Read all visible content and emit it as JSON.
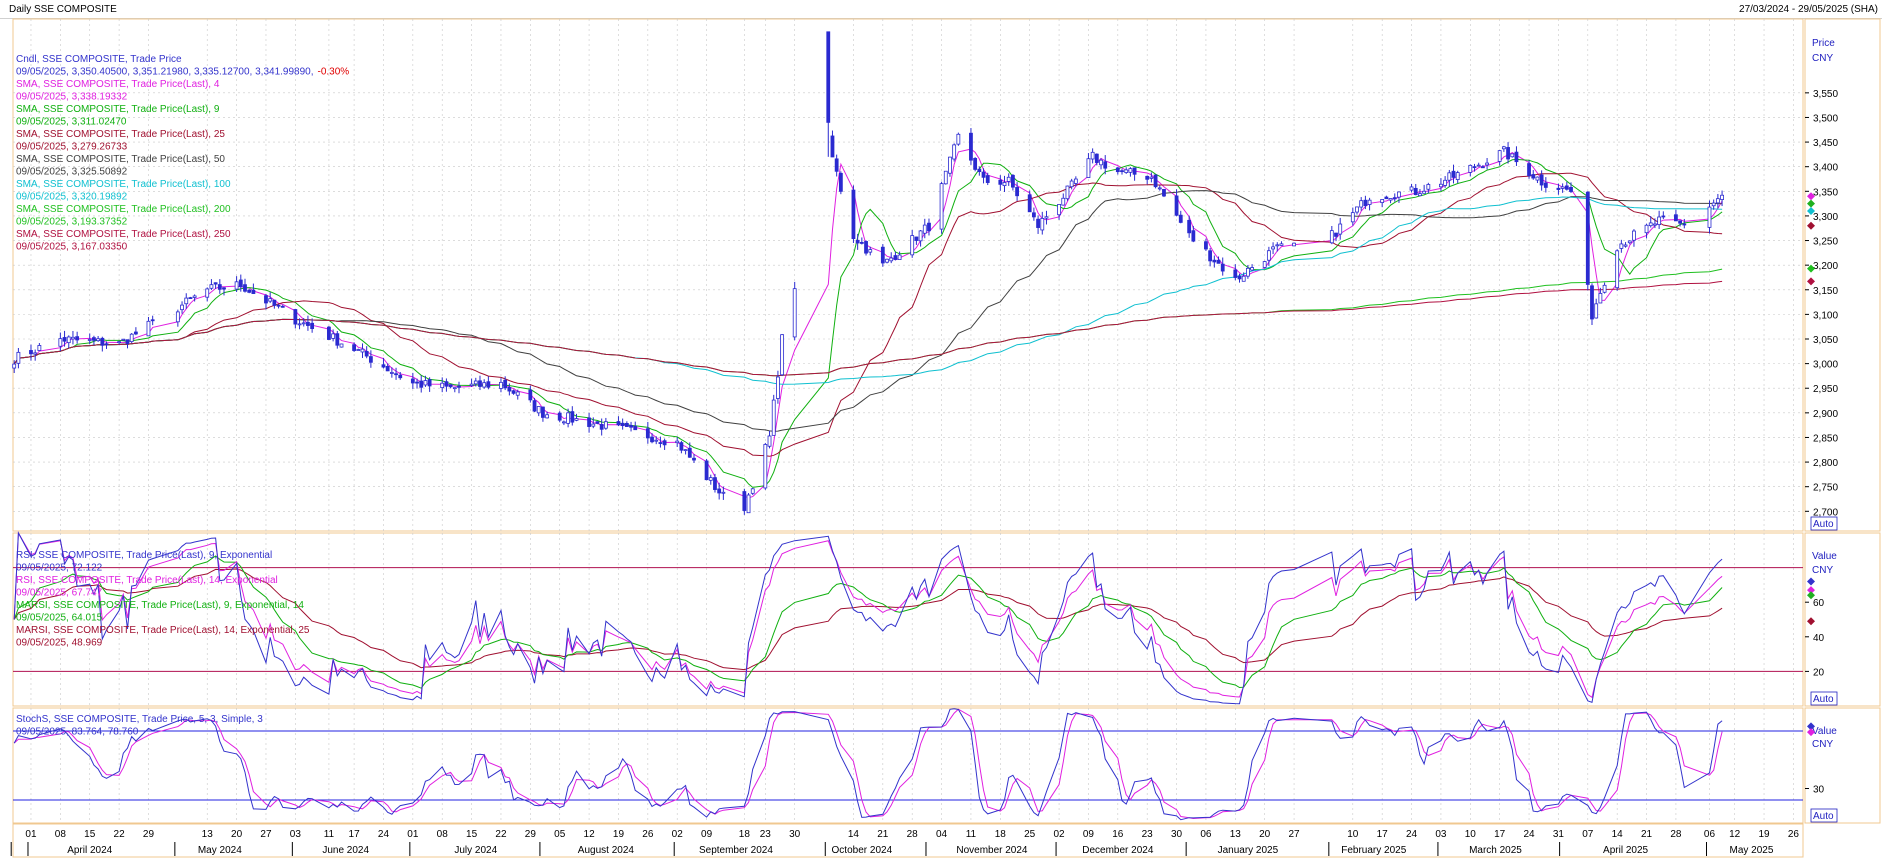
{
  "header": {
    "title": "Daily SSE COMPOSITE",
    "date_range": "27/03/2024 - 29/05/2025 (SHA)"
  },
  "chart_data": [
    {
      "type": "candlestick",
      "ylim": [
        2660,
        3700
      ],
      "yticks": [
        2700,
        2750,
        2800,
        2850,
        2900,
        2950,
        3000,
        3050,
        3100,
        3150,
        3200,
        3250,
        3300,
        3350,
        3400,
        3450,
        3500,
        3550
      ],
      "axis_label": [
        "Price",
        "CNY"
      ],
      "auto_label": "Auto",
      "key_points": [
        {
          "d": "2024-03-28",
          "v": 3010
        },
        {
          "d": "2024-04-08",
          "v": 3050
        },
        {
          "d": "2024-04-22",
          "v": 3040
        },
        {
          "d": "2024-05-13",
          "v": 3150
        },
        {
          "d": "2024-05-21",
          "v": 3160
        },
        {
          "d": "2024-06-03",
          "v": 3090
        },
        {
          "d": "2024-06-17",
          "v": 3030
        },
        {
          "d": "2024-07-01",
          "v": 2960
        },
        {
          "d": "2024-07-10",
          "v": 2950
        },
        {
          "d": "2024-07-22",
          "v": 2960
        },
        {
          "d": "2024-08-01",
          "v": 2900
        },
        {
          "d": "2024-08-12",
          "v": 2880
        },
        {
          "d": "2024-08-23",
          "v": 2860
        },
        {
          "d": "2024-09-02",
          "v": 2840
        },
        {
          "d": "2024-09-13",
          "v": 2730
        },
        {
          "d": "2024-09-18",
          "v": 2710
        },
        {
          "d": "2024-09-24",
          "v": 2850
        },
        {
          "d": "2024-09-27",
          "v": 3050
        },
        {
          "d": "2024-10-08",
          "v": 3450
        },
        {
          "d": "2024-10-14",
          "v": 3260
        },
        {
          "d": "2024-10-21",
          "v": 3200
        },
        {
          "d": "2024-11-01",
          "v": 3280
        },
        {
          "d": "2024-11-08",
          "v": 3460
        },
        {
          "d": "2024-11-14",
          "v": 3370
        },
        {
          "d": "2024-11-20",
          "v": 3370
        },
        {
          "d": "2024-11-27",
          "v": 3280
        },
        {
          "d": "2024-12-05",
          "v": 3360
        },
        {
          "d": "2024-12-10",
          "v": 3420
        },
        {
          "d": "2024-12-16",
          "v": 3390
        },
        {
          "d": "2024-12-24",
          "v": 3380
        },
        {
          "d": "2025-01-02",
          "v": 3260
        },
        {
          "d": "2025-01-13",
          "v": 3170
        },
        {
          "d": "2025-01-22",
          "v": 3230
        },
        {
          "d": "2025-02-05",
          "v": 3260
        },
        {
          "d": "2025-02-14",
          "v": 3340
        },
        {
          "d": "2025-02-25",
          "v": 3350
        },
        {
          "d": "2025-03-06",
          "v": 3380
        },
        {
          "d": "2025-03-18",
          "v": 3430
        },
        {
          "d": "2025-03-27",
          "v": 3370
        },
        {
          "d": "2025-04-03",
          "v": 3350
        },
        {
          "d": "2025-04-08",
          "v": 3100
        },
        {
          "d": "2025-04-14",
          "v": 3240
        },
        {
          "d": "2025-04-24",
          "v": 3290
        },
        {
          "d": "2025-04-30",
          "v": 3280
        },
        {
          "d": "2025-05-09",
          "v": 3342
        }
      ],
      "overlays": [
        {
          "name": "Cndl, SSE COMPOSITE, Trade Price",
          "values": "09/05/2025, 3,350.40500, 3,351.21980, 3,335.12700, 3,341.99890,",
          "extra": "-0.30%",
          "color": "#3333cc",
          "extra_color": "#e00000"
        },
        {
          "name": "SMA, SSE COMPOSITE, Trade Price(Last),  4",
          "values": "09/05/2025, 3,338.19332",
          "color": "#e020e0"
        },
        {
          "name": "SMA, SSE COMPOSITE, Trade Price(Last),  9",
          "values": "09/05/2025, 3,311.02470",
          "color": "#10b010"
        },
        {
          "name": "SMA, SSE COMPOSITE, Trade Price(Last),  25",
          "values": "09/05/2025, 3,279.26733",
          "color": "#a01030"
        },
        {
          "name": "SMA, SSE COMPOSITE, Trade Price(Last),  50",
          "values": "09/05/2025, 3,325.50892",
          "color": "#404040"
        },
        {
          "name": "SMA, SSE COMPOSITE, Trade Price(Last),  100",
          "values": "09/05/2025, 3,320.19892",
          "color": "#10c0d0"
        },
        {
          "name": "SMA, SSE COMPOSITE, Trade Price(Last),  200",
          "values": "09/05/2025, 3,193.37352",
          "color": "#20c020"
        },
        {
          "name": "SMA, SSE COMPOSITE, Trade Price(Last),  250",
          "values": "09/05/2025, 3,167.03350",
          "color": "#b01040"
        }
      ],
      "ma_series": [
        {
          "period": 4,
          "color": "#e020e0"
        },
        {
          "period": 9,
          "color": "#10b010"
        },
        {
          "period": 25,
          "color": "#a01030"
        },
        {
          "period": 50,
          "color": "#404040"
        },
        {
          "period": 100,
          "color": "#10c0d0"
        },
        {
          "period": 200,
          "color": "#20c020"
        },
        {
          "period": 250,
          "color": "#b01040"
        }
      ]
    },
    {
      "type": "line",
      "ylim": [
        0,
        100
      ],
      "yticks": [
        20,
        40,
        60
      ],
      "reference_lines": [
        20,
        80
      ],
      "axis_label": [
        "Value",
        "CNY"
      ],
      "auto_label": "Auto",
      "overlays": [
        {
          "name": "RSI, SSE COMPOSITE, Trade Price(Last),  9, Exponential",
          "values": "09/05/2025, 72.122",
          "color": "#3333cc"
        },
        {
          "name": "RSI, SSE COMPOSITE, Trade Price(Last),  14, Exponential",
          "values": "09/05/2025, 67.747",
          "color": "#e020e0"
        },
        {
          "name": "MARSI, SSE COMPOSITE, Trade Price(Last),  9, Exponential, 14",
          "values": "09/05/2025, 64.015",
          "color": "#10b010"
        },
        {
          "name": "MARSI, SSE COMPOSITE, Trade Price(Last),  14, Exponential, 25",
          "values": "09/05/2025, 48.969",
          "color": "#a01030"
        }
      ]
    },
    {
      "type": "line",
      "ylim": [
        0,
        100
      ],
      "yticks": [
        30
      ],
      "reference_lines": [
        20,
        80
      ],
      "axis_label": [
        "Value",
        "CNY"
      ],
      "auto_label": "Auto",
      "overlays": [
        {
          "name": "StochS, SSE COMPOSITE, Trade Price,  5, 3, Simple, 3",
          "values": "09/05/2025, 83.764, 78.760",
          "color": "#3333cc"
        }
      ]
    }
  ],
  "x_axis": {
    "day_ticks": [
      {
        "d": "2024-04-01",
        "label": "01"
      },
      {
        "d": "2024-04-08",
        "label": "08"
      },
      {
        "d": "2024-04-15",
        "label": "15"
      },
      {
        "d": "2024-04-22",
        "label": "22"
      },
      {
        "d": "2024-04-29",
        "label": "29"
      },
      {
        "d": "2024-05-13",
        "label": "13"
      },
      {
        "d": "2024-05-20",
        "label": "20"
      },
      {
        "d": "2024-05-27",
        "label": "27"
      },
      {
        "d": "2024-06-03",
        "label": "03"
      },
      {
        "d": "2024-06-11",
        "label": "11"
      },
      {
        "d": "2024-06-17",
        "label": "17"
      },
      {
        "d": "2024-06-24",
        "label": "24"
      },
      {
        "d": "2024-07-01",
        "label": "01"
      },
      {
        "d": "2024-07-08",
        "label": "08"
      },
      {
        "d": "2024-07-15",
        "label": "15"
      },
      {
        "d": "2024-07-22",
        "label": "22"
      },
      {
        "d": "2024-07-29",
        "label": "29"
      },
      {
        "d": "2024-08-05",
        "label": "05"
      },
      {
        "d": "2024-08-12",
        "label": "12"
      },
      {
        "d": "2024-08-19",
        "label": "19"
      },
      {
        "d": "2024-08-26",
        "label": "26"
      },
      {
        "d": "2024-09-02",
        "label": "02"
      },
      {
        "d": "2024-09-09",
        "label": "09"
      },
      {
        "d": "2024-09-18",
        "label": "18"
      },
      {
        "d": "2024-09-23",
        "label": "23"
      },
      {
        "d": "2024-09-30",
        "label": "30"
      },
      {
        "d": "2024-10-14",
        "label": "14"
      },
      {
        "d": "2024-10-21",
        "label": "21"
      },
      {
        "d": "2024-10-28",
        "label": "28"
      },
      {
        "d": "2024-11-04",
        "label": "04"
      },
      {
        "d": "2024-11-11",
        "label": "11"
      },
      {
        "d": "2024-11-18",
        "label": "18"
      },
      {
        "d": "2024-11-25",
        "label": "25"
      },
      {
        "d": "2024-12-02",
        "label": "02"
      },
      {
        "d": "2024-12-09",
        "label": "09"
      },
      {
        "d": "2024-12-16",
        "label": "16"
      },
      {
        "d": "2024-12-23",
        "label": "23"
      },
      {
        "d": "2024-12-30",
        "label": "30"
      },
      {
        "d": "2025-01-06",
        "label": "06"
      },
      {
        "d": "2025-01-13",
        "label": "13"
      },
      {
        "d": "2025-01-20",
        "label": "20"
      },
      {
        "d": "2025-01-27",
        "label": "27"
      },
      {
        "d": "2025-02-10",
        "label": "10"
      },
      {
        "d": "2025-02-17",
        "label": "17"
      },
      {
        "d": "2025-02-24",
        "label": "24"
      },
      {
        "d": "2025-03-03",
        "label": "03"
      },
      {
        "d": "2025-03-10",
        "label": "10"
      },
      {
        "d": "2025-03-17",
        "label": "17"
      },
      {
        "d": "2025-03-24",
        "label": "24"
      },
      {
        "d": "2025-03-31",
        "label": "31"
      },
      {
        "d": "2025-04-07",
        "label": "07"
      },
      {
        "d": "2025-04-14",
        "label": "14"
      },
      {
        "d": "2025-04-21",
        "label": "21"
      },
      {
        "d": "2025-04-28",
        "label": "28"
      },
      {
        "d": "2025-05-06",
        "label": "06"
      },
      {
        "d": "2025-05-12",
        "label": "12"
      },
      {
        "d": "2025-05-19",
        "label": "19"
      },
      {
        "d": "2025-05-26",
        "label": "26"
      }
    ],
    "month_labels": [
      {
        "d": "2024-04-15",
        "label": "April 2024"
      },
      {
        "d": "2024-05-16",
        "label": "May 2024"
      },
      {
        "d": "2024-06-15",
        "label": "June 2024"
      },
      {
        "d": "2024-07-16",
        "label": "July 2024"
      },
      {
        "d": "2024-08-16",
        "label": "August 2024"
      },
      {
        "d": "2024-09-16",
        "label": "September 2024"
      },
      {
        "d": "2024-10-16",
        "label": "October 2024"
      },
      {
        "d": "2024-11-16",
        "label": "November 2024"
      },
      {
        "d": "2024-12-16",
        "label": "December 2024"
      },
      {
        "d": "2025-01-16",
        "label": "January 2025"
      },
      {
        "d": "2025-02-15",
        "label": "February 2025"
      },
      {
        "d": "2025-03-16",
        "label": "March 2025"
      },
      {
        "d": "2025-04-16",
        "label": "April 2025"
      },
      {
        "d": "2025-05-16",
        "label": "May 2025"
      }
    ]
  }
}
